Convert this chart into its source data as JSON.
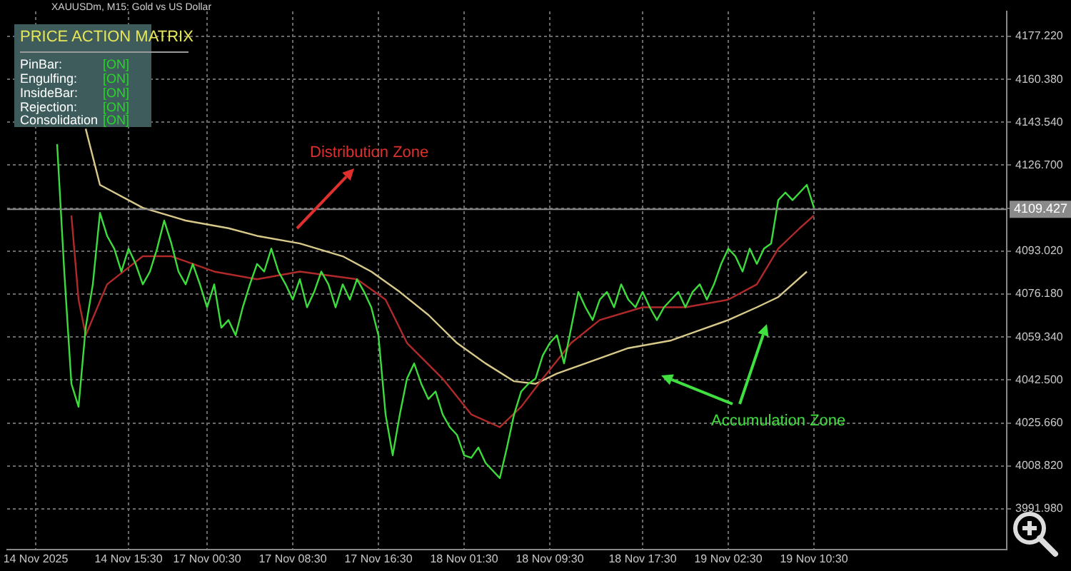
{
  "chart_data": {
    "type": "line",
    "title": "PRICE ACTION MATRIX",
    "subtitle": "XAUUSDm, M15: Gold vs US Dollar",
    "categories": [
      null,
      null,
      null,
      null,
      "14 Nov 2025",
      null,
      null,
      null,
      null,
      null,
      null,
      null,
      null,
      null,
      null,
      null,
      null,
      "14 Nov 15:30",
      null,
      null,
      null,
      null,
      null,
      null,
      null,
      null,
      null,
      null,
      "17 Nov 00:30",
      null,
      null,
      null,
      null,
      null,
      null,
      null,
      null,
      null,
      null,
      null,
      "17 Nov 08:30",
      null,
      null,
      null,
      null,
      null,
      null,
      null,
      null,
      null,
      null,
      null,
      "17 Nov 16:30",
      null,
      null,
      null,
      null,
      null,
      null,
      null,
      null,
      null,
      null,
      null,
      "18 Nov 01:30",
      null,
      null,
      null,
      null,
      null,
      null,
      null,
      null,
      null,
      null,
      null,
      "18 Nov 09:30",
      null,
      null,
      null,
      null,
      null,
      null,
      null,
      null,
      null,
      null,
      null,
      null,
      "18 Nov 17:30",
      null,
      null,
      null,
      null,
      null,
      null,
      null,
      null,
      null,
      null,
      null,
      "19 Nov 02:30",
      null,
      null,
      null,
      null,
      null,
      null,
      null,
      null,
      null,
      null,
      null,
      "19 Nov 10:30",
      null,
      null,
      null,
      null,
      null,
      null,
      null,
      null,
      null,
      null,
      null,
      null,
      null,
      null,
      null,
      null,
      null,
      null,
      null,
      null,
      null,
      null,
      null,
      null,
      null,
      null,
      null
    ],
    "series": [
      {
        "color": "#3ddc3d",
        "values": [
          null,
          null,
          null,
          null,
          null,
          null,
          null,
          4135,
          4085,
          4041,
          4032,
          4063,
          4080,
          4108,
          4099,
          4094,
          4085,
          4094,
          4088,
          4080,
          4085,
          4094,
          4105,
          4096,
          4085,
          4080,
          4088,
          4080,
          4071,
          4080,
          4063,
          4066,
          4060,
          4071,
          4080,
          4088,
          4085,
          4094,
          4085,
          4080,
          4074,
          4082,
          4071,
          4077,
          4085,
          4080,
          4071,
          4080,
          4074,
          4082,
          4077,
          4071,
          4060,
          4029,
          4013,
          4029,
          4043,
          4049,
          4041,
          4035,
          4038,
          4029,
          4024,
          4021,
          4013,
          4012,
          4016,
          4010,
          4007,
          4004,
          4016,
          4029,
          4038,
          4041,
          4043,
          4052,
          4057,
          4060,
          4049,
          4063,
          4077,
          4071,
          4066,
          4074,
          4077,
          4071,
          4080,
          4074,
          4071,
          4077,
          4071,
          4066,
          4071,
          4074,
          4077,
          4071,
          4077,
          4080,
          4074,
          4080,
          4088,
          4094,
          4091,
          4085,
          4094,
          4088,
          4094,
          4096,
          4113,
          4116,
          4113,
          4116,
          4119,
          4110,
          null,
          null,
          null,
          null,
          null,
          null,
          null,
          null,
          null,
          null,
          null,
          null,
          null,
          null,
          null,
          null,
          null,
          null,
          null,
          null,
          null,
          null,
          null,
          null,
          null,
          null,
          null
        ]
      },
      {
        "color": "#b02a2a",
        "values": [
          null,
          null,
          null,
          null,
          null,
          null,
          null,
          null,
          null,
          4107,
          4074,
          4060,
          null,
          null,
          4080,
          null,
          null,
          null,
          null,
          4091,
          null,
          null,
          null,
          4091,
          null,
          null,
          null,
          null,
          null,
          4085,
          null,
          null,
          null,
          null,
          null,
          4082,
          null,
          null,
          null,
          null,
          null,
          4085,
          null,
          null,
          null,
          null,
          null,
          null,
          null,
          4082,
          null,
          null,
          null,
          4074,
          null,
          null,
          4057,
          null,
          null,
          null,
          null,
          4043,
          null,
          null,
          null,
          4029,
          null,
          null,
          null,
          4024,
          null,
          null,
          4032,
          null,
          null,
          4043,
          null,
          null,
          null,
          4057,
          null,
          null,
          null,
          4066,
          null,
          null,
          null,
          null,
          null,
          4071,
          null,
          null,
          null,
          null,
          null,
          4071,
          null,
          null,
          null,
          null,
          null,
          4074,
          null,
          null,
          null,
          4080,
          null,
          null,
          4094,
          null,
          null,
          4102,
          null,
          4107,
          null,
          null,
          null,
          null,
          null,
          null,
          null,
          null,
          null,
          null,
          null,
          null,
          null,
          null,
          null,
          null,
          null,
          null,
          null,
          null,
          null,
          null,
          null,
          null,
          null,
          null,
          null
        ]
      },
      {
        "color": "#d8c98a",
        "values": [
          null,
          null,
          null,
          null,
          null,
          null,
          null,
          null,
          null,
          null,
          null,
          4141,
          null,
          4119,
          null,
          null,
          null,
          null,
          null,
          4110,
          null,
          null,
          null,
          null,
          null,
          4105,
          null,
          null,
          null,
          null,
          null,
          4102,
          null,
          null,
          null,
          4099,
          null,
          null,
          null,
          null,
          null,
          4096,
          null,
          null,
          null,
          null,
          null,
          4091,
          null,
          null,
          null,
          4085,
          null,
          null,
          null,
          4077,
          null,
          null,
          null,
          4068,
          null,
          null,
          null,
          4057,
          null,
          null,
          null,
          4049,
          null,
          null,
          null,
          4042,
          null,
          null,
          4041,
          null,
          null,
          4045,
          null,
          null,
          null,
          4049,
          null,
          null,
          null,
          null,
          null,
          4055,
          null,
          null,
          null,
          null,
          null,
          4058,
          null,
          null,
          null,
          4062,
          null,
          null,
          null,
          4066,
          null,
          null,
          null,
          4071,
          null,
          null,
          4075,
          null,
          null,
          null,
          4085,
          null,
          null,
          null,
          null,
          null,
          null,
          null,
          null,
          null,
          null,
          null,
          null,
          null,
          null,
          null,
          null,
          null,
          null,
          null,
          null,
          null,
          null,
          null,
          null,
          null,
          null,
          null,
          null
        ]
      }
    ],
    "ylim": [
      3976,
      4187
    ],
    "yticks": [
      {
        "value": 3991.98,
        "label": "3991.980"
      },
      {
        "value": 4008.82,
        "label": "4008.820"
      },
      {
        "value": 4025.66,
        "label": "4025.660"
      },
      {
        "value": 4042.5,
        "label": "4042.500"
      },
      {
        "value": 4059.34,
        "label": "4059.340"
      },
      {
        "value": 4076.18,
        "label": "4076.180"
      },
      {
        "value": 4093.02,
        "label": "4093.020"
      },
      {
        "value": 4109.86,
        "label": null
      },
      {
        "value": 4126.7,
        "label": "4126.700"
      },
      {
        "value": 4143.54,
        "label": "4143.540"
      },
      {
        "value": 4160.38,
        "label": "4160.380"
      },
      {
        "value": 4177.22,
        "label": "4177.220"
      }
    ],
    "ref_lines": [
      {
        "axis": "y",
        "value": 4109.427,
        "label": "4109.427",
        "color": "#8a8a8a"
      }
    ],
    "annotations": [
      "PinBar:",
      "[ON]",
      "Engulfing:",
      "[ON]",
      "InsideBar:",
      "[ON]",
      "Rejection:",
      "[ON]",
      "Consolidation",
      "[ON]",
      "Distribution Zone",
      "Accumulation Zone"
    ],
    "grid": true,
    "legend": false,
    "marker": "none",
    "line_style": "solid"
  }
}
